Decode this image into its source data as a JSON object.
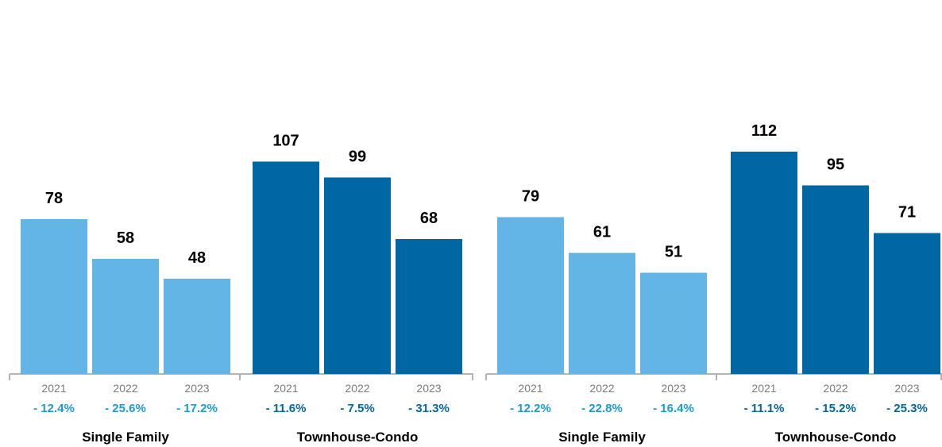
{
  "colors": {
    "single_family_bar": "#62b5e5",
    "townhouse_bar": "#0067a5",
    "single_family_pct": "#1a9bd7",
    "townhouse_pct": "#0067a5",
    "axis": "#b3b3b3"
  },
  "chart_data": [
    {
      "type": "bar",
      "title": "",
      "groups": [
        {
          "label": "Single Family",
          "years": [
            "2021",
            "2022",
            "2023"
          ],
          "values": [
            78,
            58,
            48
          ],
          "changes": [
            "- 12.4%",
            "- 25.6%",
            "- 17.2%"
          ]
        },
        {
          "label": "Townhouse-Condo",
          "years": [
            "2021",
            "2022",
            "2023"
          ],
          "values": [
            107,
            99,
            68
          ],
          "changes": [
            "- 11.6%",
            "- 7.5%",
            "- 31.3%"
          ]
        }
      ]
    },
    {
      "type": "bar",
      "title": "",
      "groups": [
        {
          "label": "Single Family",
          "years": [
            "2021",
            "2022",
            "2023"
          ],
          "values": [
            79,
            61,
            51
          ],
          "changes": [
            "- 12.2%",
            "- 22.8%",
            "- 16.4%"
          ]
        },
        {
          "label": "Townhouse-Condo",
          "years": [
            "2021",
            "2022",
            "2023"
          ],
          "values": [
            112,
            95,
            71
          ],
          "changes": [
            "- 11.1%",
            "- 15.2%",
            "- 25.3%"
          ]
        }
      ]
    }
  ]
}
